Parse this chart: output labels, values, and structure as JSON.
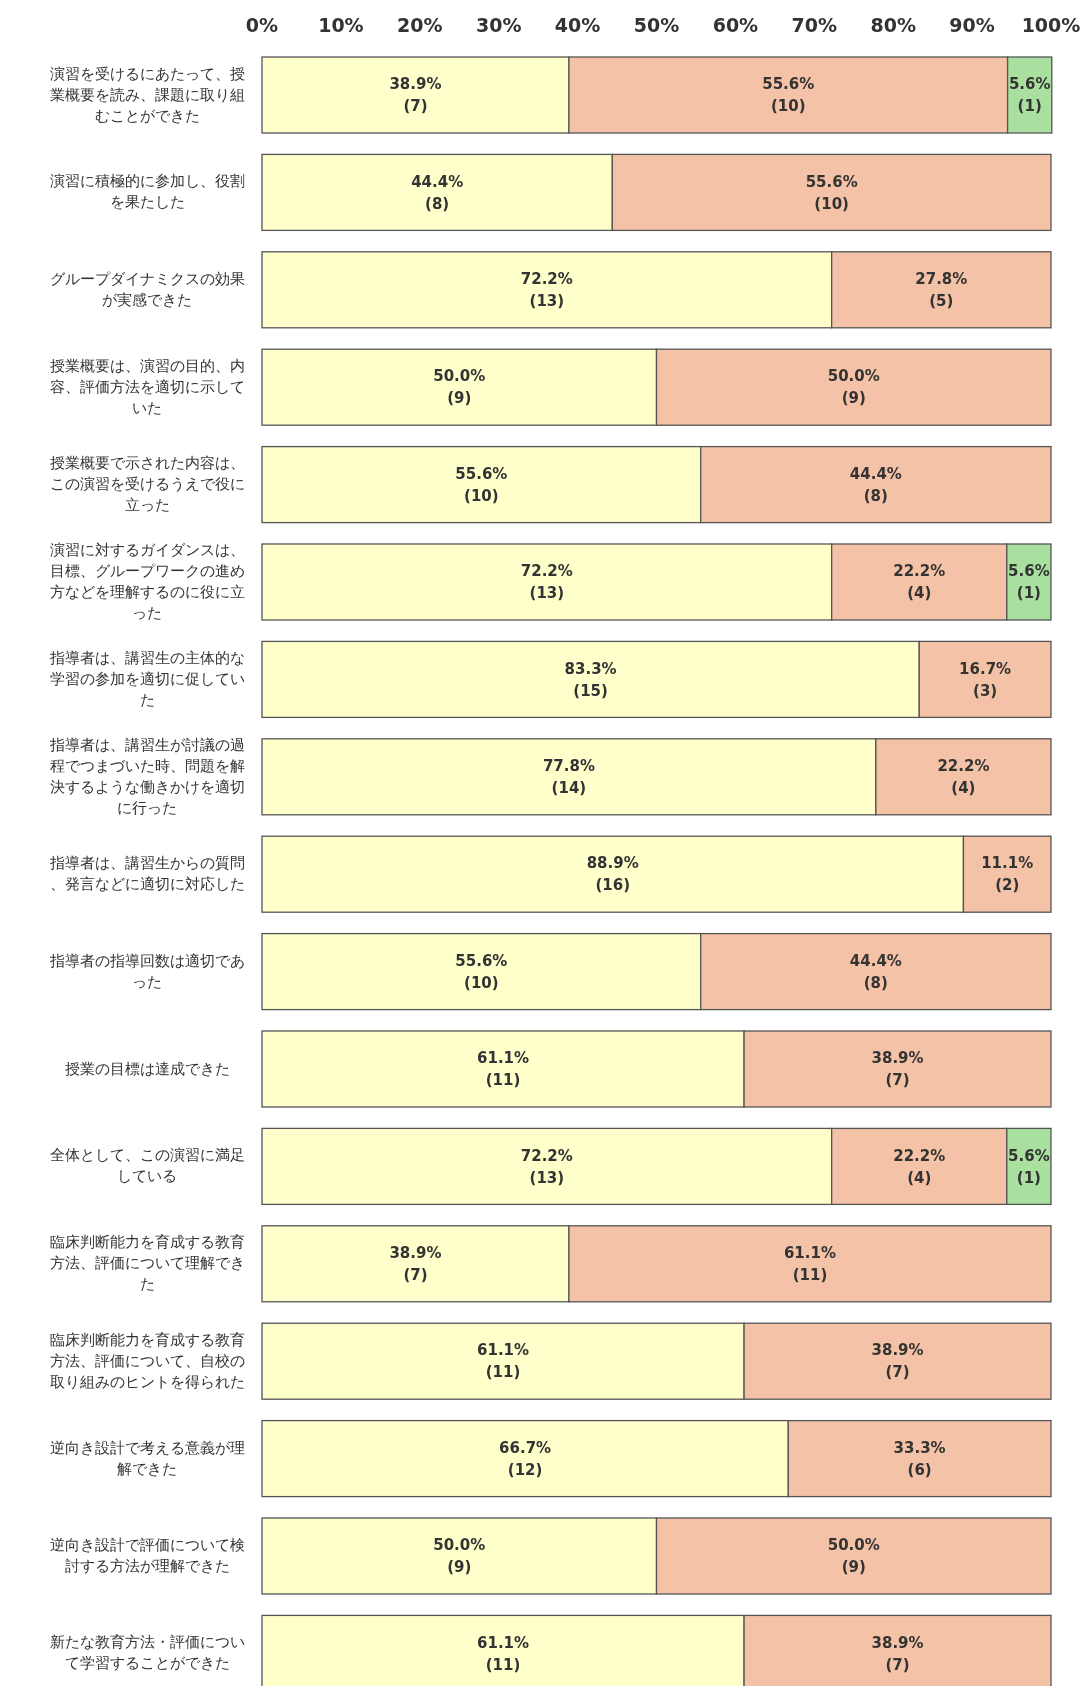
{
  "chart_data": {
    "type": "bar",
    "orientation": "horizontal",
    "stacked": true,
    "categories": [
      "演習を受けるにあたって、授業概要を読み、課題に取り組むことができた",
      "演習に積極的に参加し、役割を果たした",
      "グループダイナミクスの効果が実感できた",
      "授業概要は、演習の目的、内容、評価方法を適切に示していた",
      "授業概要で示された内容は、この演習を受けるうえで役に立った",
      "演習に対するガイダンスは、目標、グループワークの進め方などを理解するのに役に立った",
      "指導者は、講習生の主体的な学習の参加を適切に促していた",
      "指導者は、講習生が討議の過程でつまづいた時、問題を解決するような働きかけを適切に行った",
      "指導者は、講習生からの質問、発言などに適切に対応した",
      "指導者の指導回数は適切であった",
      "授業の目標は達成できた",
      "全体として、この演習に満足している",
      "臨床判断能力を育成する教育方法、評価について理解できた",
      "臨床判断能力を育成する教育方法、評価について、自校の取り組みのヒントを得られた",
      "逆向き設計で考える意義が理解できた",
      "逆向き設計で評価について検討する方法が理解できた",
      "新たな教育方法・評価について学習することができた"
    ],
    "series": [
      {
        "color": "#ffffcc",
        "values": [
          38.9,
          44.4,
          72.2,
          50.0,
          55.6,
          72.2,
          83.3,
          77.8,
          88.9,
          55.6,
          61.1,
          72.2,
          38.9,
          61.1,
          66.7,
          50.0,
          61.1
        ],
        "value_labels": [
          "38.9%\n(7)",
          "44.4%\n(8)",
          "72.2%\n(13)",
          "50.0%\n(9)",
          "55.6%\n(10)",
          "72.2%\n(13)",
          "83.3%\n(15)",
          "77.8%\n(14)",
          "88.9%\n(16)",
          "55.6%\n(10)",
          "61.1%\n(11)",
          "72.2%\n(13)",
          "38.9%\n(7)",
          "61.1%\n(11)",
          "66.7%\n(12)",
          "50.0%\n(9)",
          "61.1%\n(11)"
        ]
      },
      {
        "color": "#f4c2a6",
        "values": [
          55.6,
          55.6,
          27.8,
          50.0,
          44.4,
          22.2,
          16.7,
          22.2,
          11.1,
          44.4,
          38.9,
          22.2,
          61.1,
          38.9,
          33.3,
          50.0,
          38.9
        ],
        "value_labels": [
          "55.6%\n(10)",
          "55.6%\n(10)",
          "27.8%\n(5)",
          "50.0%\n(9)",
          "44.4%\n(8)",
          "22.2%\n(4)",
          "16.7%\n(3)",
          "22.2%\n(4)",
          "11.1%\n(2)",
          "44.4%\n(8)",
          "38.9%\n(7)",
          "22.2%\n(4)",
          "61.1%\n(11)",
          "38.9%\n(7)",
          "33.3%\n(6)",
          "50.0%\n(9)",
          "38.9%\n(7)"
        ]
      },
      {
        "color": "#a9e0a0",
        "values": [
          5.6,
          null,
          null,
          null,
          null,
          5.6,
          null,
          null,
          null,
          null,
          null,
          5.6,
          null,
          null,
          null,
          null,
          null
        ],
        "value_labels": [
          "5.6%\n(1)",
          null,
          null,
          null,
          null,
          "5.6%\n(1)",
          null,
          null,
          null,
          null,
          null,
          "5.6%\n(1)",
          null,
          null,
          null,
          null,
          null
        ]
      }
    ],
    "xlim": [
      0,
      100
    ],
    "xticks": [
      {
        "value": 0,
        "label": "0%"
      },
      {
        "value": 10,
        "label": "10%"
      },
      {
        "value": 20,
        "label": "20%"
      },
      {
        "value": 30,
        "label": "30%"
      },
      {
        "value": 40,
        "label": "40%"
      },
      {
        "value": 50,
        "label": "50%"
      },
      {
        "value": 60,
        "label": "60%"
      },
      {
        "value": 70,
        "label": "70%"
      },
      {
        "value": 80,
        "label": "80%"
      },
      {
        "value": 90,
        "label": "90%"
      },
      {
        "value": 100,
        "label": "100%"
      }
    ]
  }
}
